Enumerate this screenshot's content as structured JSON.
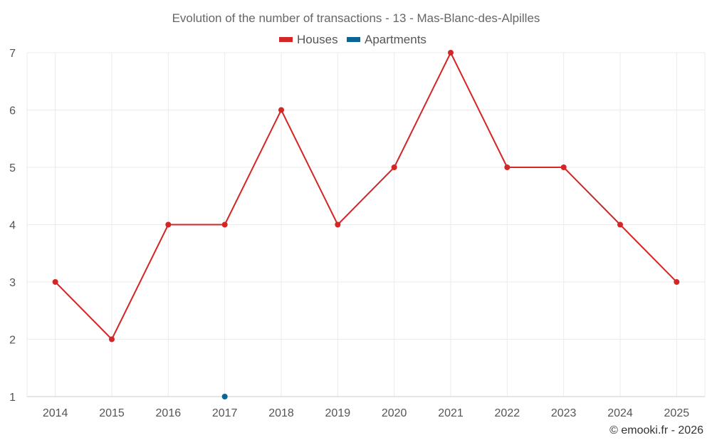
{
  "chart_data": {
    "type": "line",
    "title": "Evolution of the number of transactions - 13 - Mas-Blanc-des-Alpilles",
    "xlabel": "",
    "ylabel": "",
    "categories": [
      "2014",
      "2015",
      "2016",
      "2017",
      "2018",
      "2019",
      "2020",
      "2021",
      "2022",
      "2023",
      "2024",
      "2025"
    ],
    "ylim": [
      1,
      7
    ],
    "yticks": [
      1,
      2,
      3,
      4,
      5,
      6,
      7
    ],
    "grid": true,
    "legend_position": "top-center",
    "series": [
      {
        "name": "Houses",
        "color": "#d32626",
        "values": [
          3,
          2,
          4,
          4,
          6,
          4,
          5,
          7,
          5,
          5,
          4,
          3
        ]
      },
      {
        "name": "Apartments",
        "color": "#0a6496",
        "values": [
          null,
          null,
          null,
          1,
          null,
          null,
          null,
          null,
          null,
          null,
          null,
          null
        ]
      }
    ]
  },
  "credit": "© emooki.fr - 2026"
}
